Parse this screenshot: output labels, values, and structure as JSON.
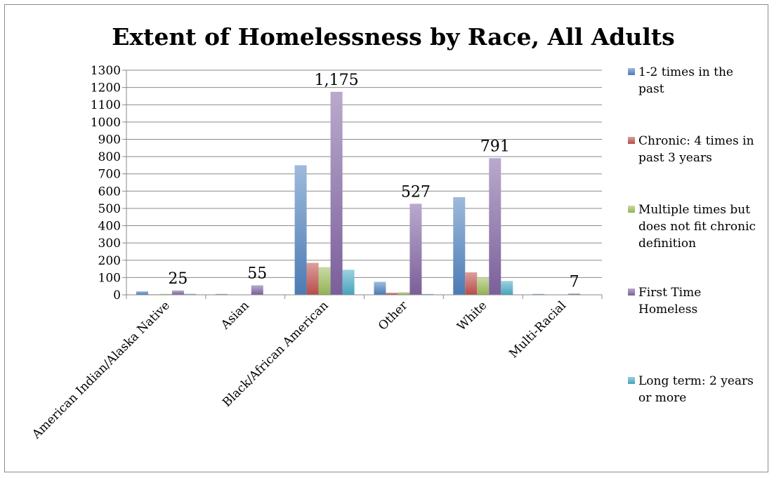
{
  "chart_data": {
    "type": "bar",
    "title": "Extent of Homelessness by Race, All Adults",
    "xlabel": "",
    "ylabel": "",
    "ylim": [
      0,
      1300
    ],
    "y_ticks": [
      0,
      100,
      200,
      300,
      400,
      500,
      600,
      700,
      800,
      900,
      1000,
      1100,
      1200,
      1300
    ],
    "grid": true,
    "legend_position": "right",
    "categories": [
      "American Indian/Alaska Native",
      "Asian",
      "Black/African American",
      "Other",
      "White",
      "Multi-Racial"
    ],
    "series": [
      {
        "name": "1-2 times in the past",
        "color": "#4f81bd",
        "values": [
          20,
          5,
          750,
          75,
          565,
          5
        ]
      },
      {
        "name": "Chronic: 4 times in past 3 years",
        "color": "#c0504d",
        "values": [
          3,
          1,
          185,
          12,
          130,
          1
        ]
      },
      {
        "name": "Multiple times but does not fit chronic definition",
        "color": "#9bbb59",
        "values": [
          5,
          1,
          160,
          15,
          100,
          1
        ]
      },
      {
        "name": "First Time Homeless",
        "color": "#8064a2",
        "values": [
          25,
          55,
          1175,
          527,
          791,
          7
        ]
      },
      {
        "name": "Long term: 2 years or more",
        "color": "#4bacc6",
        "values": [
          6,
          2,
          145,
          5,
          80,
          1
        ]
      }
    ],
    "data_labels": [
      {
        "category_index": 0,
        "series_index": 3,
        "text": "25"
      },
      {
        "category_index": 1,
        "series_index": 3,
        "text": "55"
      },
      {
        "category_index": 2,
        "series_index": 3,
        "text": "1,175"
      },
      {
        "category_index": 3,
        "series_index": 3,
        "text": "527"
      },
      {
        "category_index": 4,
        "series_index": 3,
        "text": "791"
      },
      {
        "category_index": 5,
        "series_index": 3,
        "text": "7"
      }
    ],
    "legend_lines": [
      [
        "1-2 times in the",
        "past"
      ],
      [
        "Chronic: 4 times in",
        "past 3 years"
      ],
      [
        "Multiple times but",
        "does not fit chronic",
        "definition"
      ],
      [
        "First Time",
        "Homeless"
      ],
      [
        "Long term: 2 years",
        "or more"
      ]
    ]
  }
}
